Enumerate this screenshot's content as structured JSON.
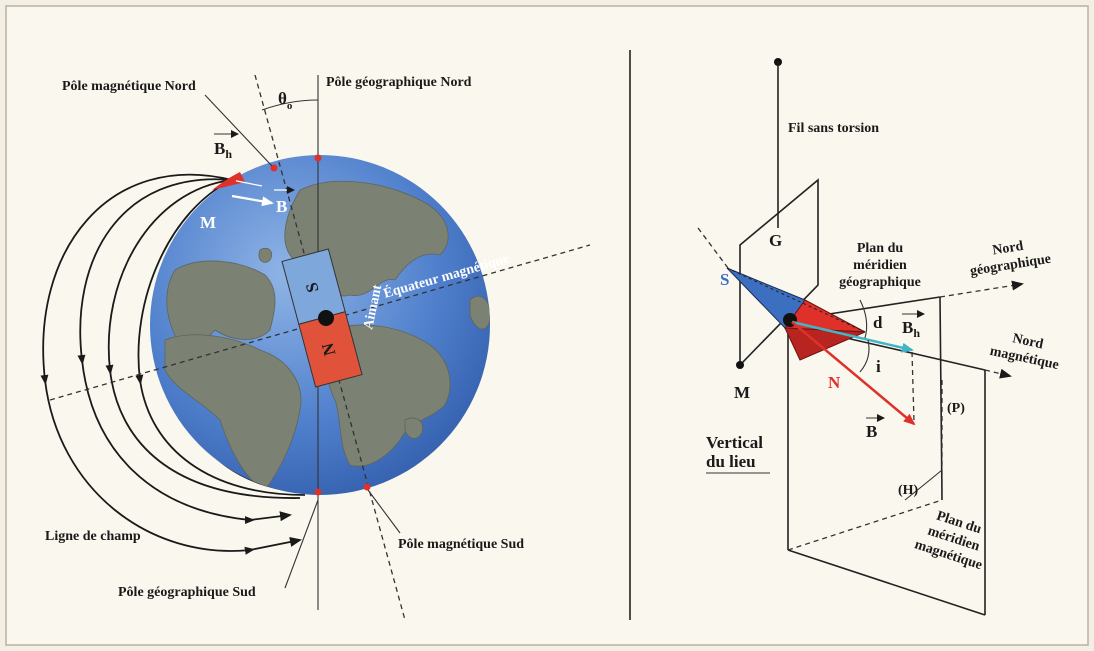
{
  "left": {
    "magnetic_north": "Pôle magnétique Nord",
    "theta": {
      "base": "θ",
      "sub": "o"
    },
    "geographic_north": "Pôle géographique Nord",
    "bh": {
      "base": "B",
      "sub": "h"
    },
    "m": "M",
    "b": "B",
    "s": "S",
    "n": "N",
    "magnet": "Aimant",
    "equator": "Équateur magnétique",
    "field_line": "Ligne de champ",
    "geographic_south": "Pôle géographique Sud",
    "magnetic_south": "Pôle magnétique Sud"
  },
  "right": {
    "wire": "Fil sans torsion",
    "g": "G",
    "geo_plane": [
      "Plan du",
      "méridien",
      "géographique"
    ],
    "geo_north": [
      "Nord",
      "géographique"
    ],
    "s": "S",
    "d": "d",
    "bh": {
      "base": "B",
      "sub": "h"
    },
    "mag_north": [
      "Nord",
      "magnétique"
    ],
    "m": "M",
    "n": "N",
    "i": "i",
    "b": "B",
    "p": "(P)",
    "vertical": [
      "Vertical",
      "du lieu"
    ],
    "h": "(H)",
    "mag_plane": [
      "Plan du",
      "méridien",
      "magnétique"
    ]
  }
}
